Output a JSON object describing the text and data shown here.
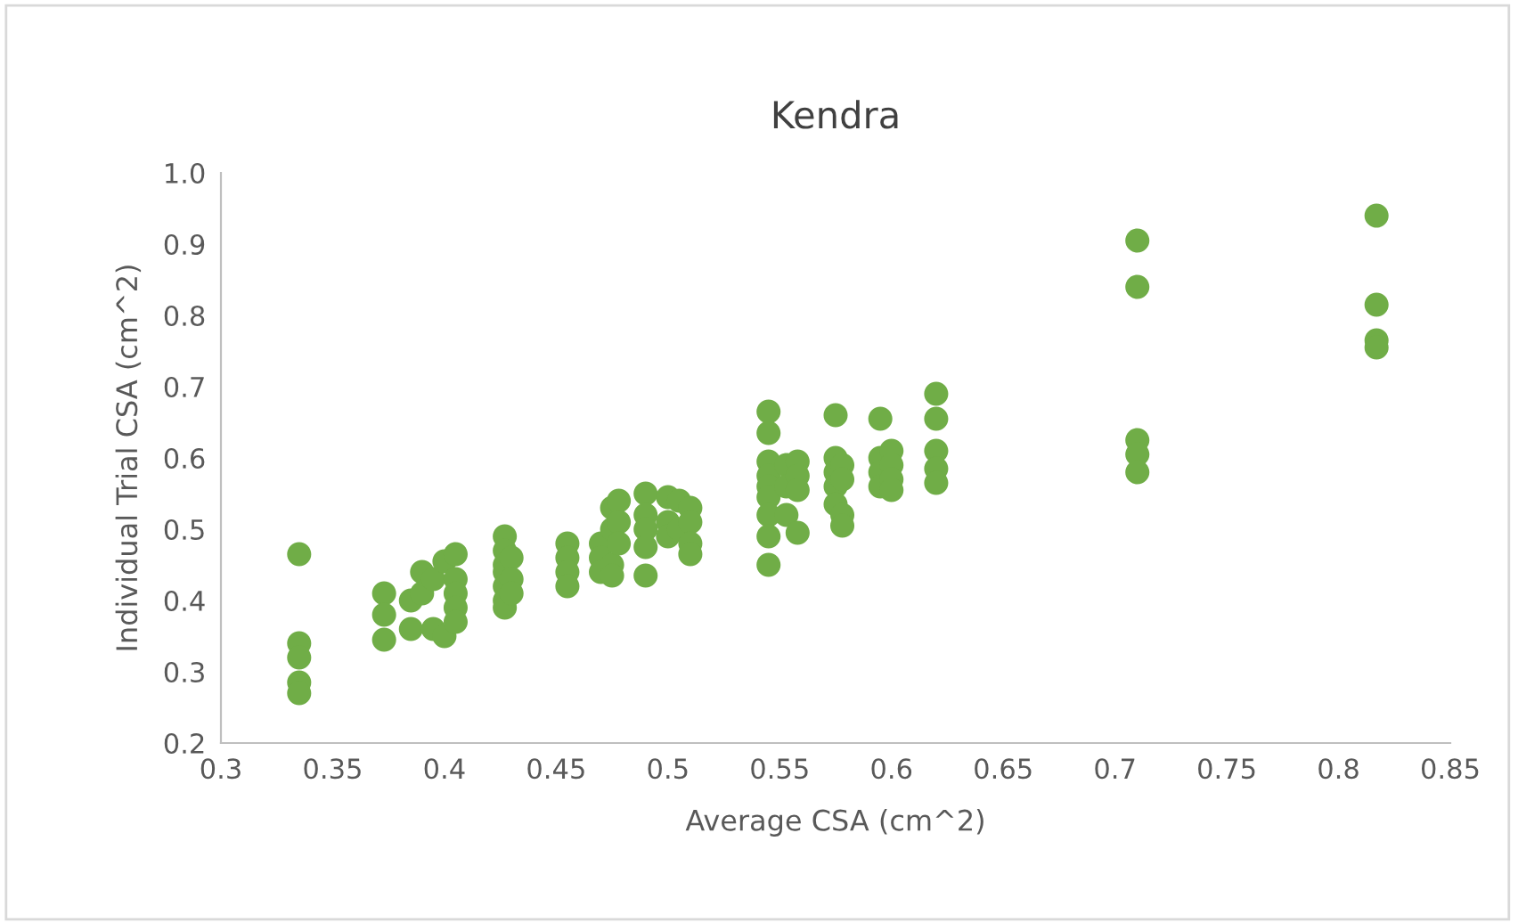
{
  "chart_data": {
    "type": "scatter",
    "title": "Kendra",
    "xlabel": "Average CSA (cm^2)",
    "ylabel": "Individual Trial CSA (cm^2)",
    "xlim": [
      0.3,
      0.85
    ],
    "xticks": [
      0.3,
      0.35,
      0.4,
      0.45,
      0.5,
      0.55,
      0.6,
      0.65,
      0.7,
      0.75,
      0.8,
      0.85
    ],
    "ylim": [
      0.2,
      1.0
    ],
    "yticks": [
      0.2,
      0.3,
      0.4,
      0.5,
      0.6,
      0.7,
      0.8,
      0.9,
      {
        "value": 1.0,
        "label": "1.0"
      }
    ],
    "grid": false,
    "marker": "circle",
    "legend": false,
    "series": [
      {
        "color": "#70ad47",
        "x": [
          0.335,
          0.335,
          0.335,
          0.335,
          0.335,
          0.373,
          0.373,
          0.373,
          0.385,
          0.385,
          0.39,
          0.39,
          0.395,
          0.395,
          0.4,
          0.4,
          0.405,
          0.405,
          0.405,
          0.405,
          0.405,
          0.427,
          0.427,
          0.427,
          0.427,
          0.427,
          0.427,
          0.427,
          0.43,
          0.43,
          0.43,
          0.455,
          0.455,
          0.455,
          0.455,
          0.47,
          0.47,
          0.47,
          0.475,
          0.475,
          0.475,
          0.475,
          0.478,
          0.478,
          0.478,
          0.49,
          0.49,
          0.49,
          0.49,
          0.49,
          0.5,
          0.5,
          0.5,
          0.505,
          0.505,
          0.51,
          0.51,
          0.51,
          0.51,
          0.545,
          0.545,
          0.545,
          0.545,
          0.545,
          0.545,
          0.545,
          0.545,
          0.545,
          0.553,
          0.553,
          0.553,
          0.558,
          0.558,
          0.558,
          0.558,
          0.575,
          0.575,
          0.575,
          0.575,
          0.575,
          0.578,
          0.578,
          0.578,
          0.578,
          0.595,
          0.595,
          0.595,
          0.595,
          0.6,
          0.6,
          0.6,
          0.6,
          0.62,
          0.62,
          0.62,
          0.62,
          0.62,
          0.71,
          0.71,
          0.71,
          0.71,
          0.71,
          0.817,
          0.817,
          0.817,
          0.817
        ],
        "values": [
          0.465,
          0.34,
          0.32,
          0.285,
          0.27,
          0.41,
          0.38,
          0.345,
          0.4,
          0.36,
          0.44,
          0.41,
          0.43,
          0.36,
          0.455,
          0.35,
          0.465,
          0.43,
          0.41,
          0.39,
          0.37,
          0.49,
          0.47,
          0.45,
          0.44,
          0.42,
          0.4,
          0.39,
          0.46,
          0.43,
          0.41,
          0.48,
          0.46,
          0.44,
          0.42,
          0.48,
          0.46,
          0.44,
          0.53,
          0.5,
          0.45,
          0.435,
          0.54,
          0.51,
          0.48,
          0.55,
          0.52,
          0.5,
          0.475,
          0.435,
          0.545,
          0.51,
          0.49,
          0.54,
          0.5,
          0.53,
          0.51,
          0.48,
          0.465,
          0.665,
          0.635,
          0.595,
          0.575,
          0.56,
          0.545,
          0.52,
          0.49,
          0.45,
          0.59,
          0.56,
          0.52,
          0.595,
          0.575,
          0.555,
          0.495,
          0.66,
          0.6,
          0.58,
          0.56,
          0.535,
          0.59,
          0.57,
          0.52,
          0.505,
          0.655,
          0.6,
          0.58,
          0.56,
          0.61,
          0.59,
          0.57,
          0.555,
          0.69,
          0.655,
          0.61,
          0.585,
          0.565,
          0.905,
          0.84,
          0.625,
          0.605,
          0.58,
          0.94,
          0.815,
          0.765,
          0.755
        ]
      }
    ]
  }
}
